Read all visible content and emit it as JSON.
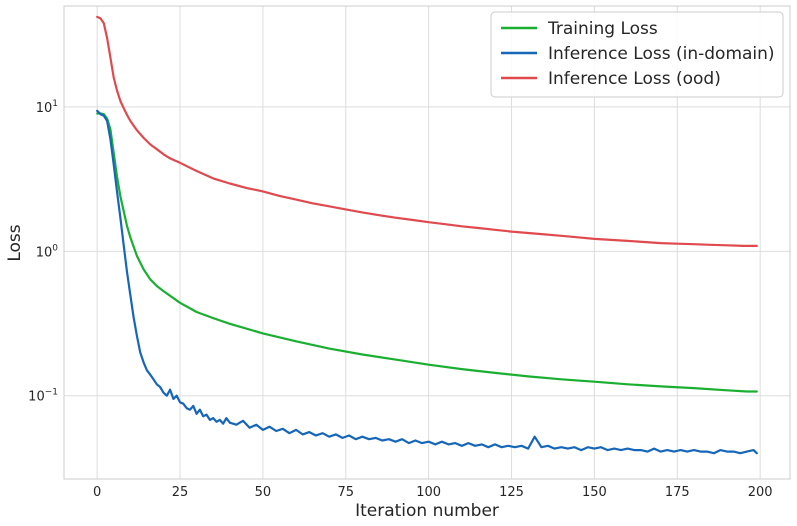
{
  "chart_data": {
    "type": "line",
    "title": "",
    "xlabel": "Iteration number",
    "ylabel": "Loss",
    "xlim": [
      -10,
      209
    ],
    "ylim": [
      0.0265,
      50
    ],
    "yscale": "log",
    "grid": true,
    "legend_position": "top-right",
    "x_ticks": [
      0,
      25,
      50,
      75,
      100,
      125,
      150,
      175,
      200
    ],
    "x_tick_labels": [
      "0",
      "25",
      "50",
      "75",
      "100",
      "125",
      "150",
      "175",
      "200"
    ],
    "y_ticks": [
      0.1,
      1,
      10
    ],
    "y_tick_labels": [
      {
        "base": "10",
        "exp": "−1"
      },
      {
        "base": "10",
        "exp": "0"
      },
      {
        "base": "10",
        "exp": "1"
      }
    ],
    "series": [
      {
        "name": "Training Loss",
        "color": "#1aaf30",
        "x": [
          0,
          1,
          2,
          3,
          4,
          5,
          6,
          7,
          8,
          9,
          10,
          12,
          14,
          16,
          18,
          20,
          25,
          30,
          35,
          40,
          50,
          60,
          70,
          80,
          90,
          100,
          110,
          120,
          130,
          140,
          150,
          160,
          170,
          180,
          190,
          196,
          199
        ],
        "y": [
          9.0,
          9.0,
          8.9,
          8.3,
          7.0,
          4.8,
          3.3,
          2.4,
          1.9,
          1.5,
          1.25,
          0.93,
          0.75,
          0.64,
          0.575,
          0.53,
          0.44,
          0.38,
          0.345,
          0.315,
          0.27,
          0.238,
          0.212,
          0.193,
          0.178,
          0.164,
          0.153,
          0.144,
          0.136,
          0.13,
          0.125,
          0.12,
          0.116,
          0.113,
          0.109,
          0.107,
          0.107
        ]
      },
      {
        "name": "Inference Loss (in-domain)",
        "color": "#1666b9",
        "x": [
          0,
          1,
          2,
          3,
          4,
          5,
          6,
          7,
          8,
          9,
          10,
          11,
          12,
          13,
          14,
          15,
          16,
          17,
          18,
          19,
          20,
          21,
          22,
          23,
          24,
          25,
          26,
          27,
          28,
          29,
          30,
          31,
          32,
          33,
          34,
          35,
          36,
          37,
          38,
          39,
          40,
          42,
          44,
          46,
          48,
          50,
          52,
          54,
          56,
          58,
          60,
          62,
          64,
          66,
          68,
          70,
          72,
          74,
          76,
          78,
          80,
          82,
          84,
          86,
          88,
          90,
          92,
          94,
          96,
          98,
          100,
          102,
          104,
          106,
          108,
          110,
          112,
          114,
          116,
          118,
          120,
          122,
          124,
          126,
          128,
          130,
          132,
          134,
          136,
          138,
          140,
          142,
          144,
          146,
          148,
          150,
          152,
          154,
          156,
          158,
          160,
          162,
          164,
          166,
          168,
          170,
          172,
          174,
          176,
          178,
          180,
          182,
          184,
          186,
          188,
          190,
          192,
          194,
          196,
          198,
          199
        ],
        "y": [
          9.4,
          8.9,
          8.7,
          8.0,
          6.0,
          4.0,
          2.6,
          1.7,
          1.1,
          0.72,
          0.5,
          0.35,
          0.26,
          0.2,
          0.17,
          0.15,
          0.14,
          0.13,
          0.12,
          0.115,
          0.105,
          0.1,
          0.11,
          0.095,
          0.1,
          0.09,
          0.088,
          0.082,
          0.08,
          0.085,
          0.075,
          0.08,
          0.072,
          0.074,
          0.068,
          0.07,
          0.066,
          0.068,
          0.064,
          0.07,
          0.065,
          0.063,
          0.067,
          0.06,
          0.063,
          0.058,
          0.061,
          0.057,
          0.059,
          0.055,
          0.058,
          0.054,
          0.056,
          0.053,
          0.055,
          0.052,
          0.054,
          0.051,
          0.053,
          0.05,
          0.052,
          0.05,
          0.051,
          0.049,
          0.05,
          0.048,
          0.05,
          0.047,
          0.049,
          0.047,
          0.048,
          0.046,
          0.048,
          0.046,
          0.047,
          0.045,
          0.047,
          0.045,
          0.046,
          0.044,
          0.046,
          0.044,
          0.045,
          0.044,
          0.045,
          0.043,
          0.052,
          0.044,
          0.045,
          0.043,
          0.044,
          0.043,
          0.044,
          0.042,
          0.044,
          0.043,
          0.044,
          0.042,
          0.043,
          0.042,
          0.043,
          0.042,
          0.042,
          0.041,
          0.043,
          0.041,
          0.042,
          0.041,
          0.042,
          0.041,
          0.042,
          0.041,
          0.041,
          0.04,
          0.042,
          0.041,
          0.041,
          0.04,
          0.041,
          0.042,
          0.04
        ]
      },
      {
        "name": "Inference Loss (ood)",
        "color": "#e04a4f",
        "x": [
          0,
          1,
          2,
          3,
          4,
          5,
          6,
          7,
          8,
          9,
          10,
          12,
          14,
          16,
          18,
          20,
          22,
          25,
          30,
          35,
          40,
          45,
          50,
          55,
          60,
          65,
          70,
          75,
          80,
          85,
          90,
          95,
          100,
          105,
          110,
          115,
          120,
          125,
          130,
          135,
          140,
          145,
          150,
          155,
          160,
          165,
          170,
          175,
          180,
          185,
          190,
          195,
          199
        ],
        "y": [
          42,
          41,
          38,
          30,
          22,
          16,
          13,
          11,
          9.8,
          8.8,
          8.0,
          6.9,
          6.1,
          5.5,
          5.1,
          4.7,
          4.4,
          4.1,
          3.6,
          3.2,
          2.95,
          2.75,
          2.6,
          2.42,
          2.28,
          2.15,
          2.05,
          1.95,
          1.86,
          1.78,
          1.71,
          1.65,
          1.59,
          1.54,
          1.49,
          1.45,
          1.41,
          1.37,
          1.34,
          1.31,
          1.28,
          1.25,
          1.22,
          1.2,
          1.18,
          1.16,
          1.14,
          1.13,
          1.12,
          1.11,
          1.1,
          1.09,
          1.09
        ]
      }
    ]
  }
}
